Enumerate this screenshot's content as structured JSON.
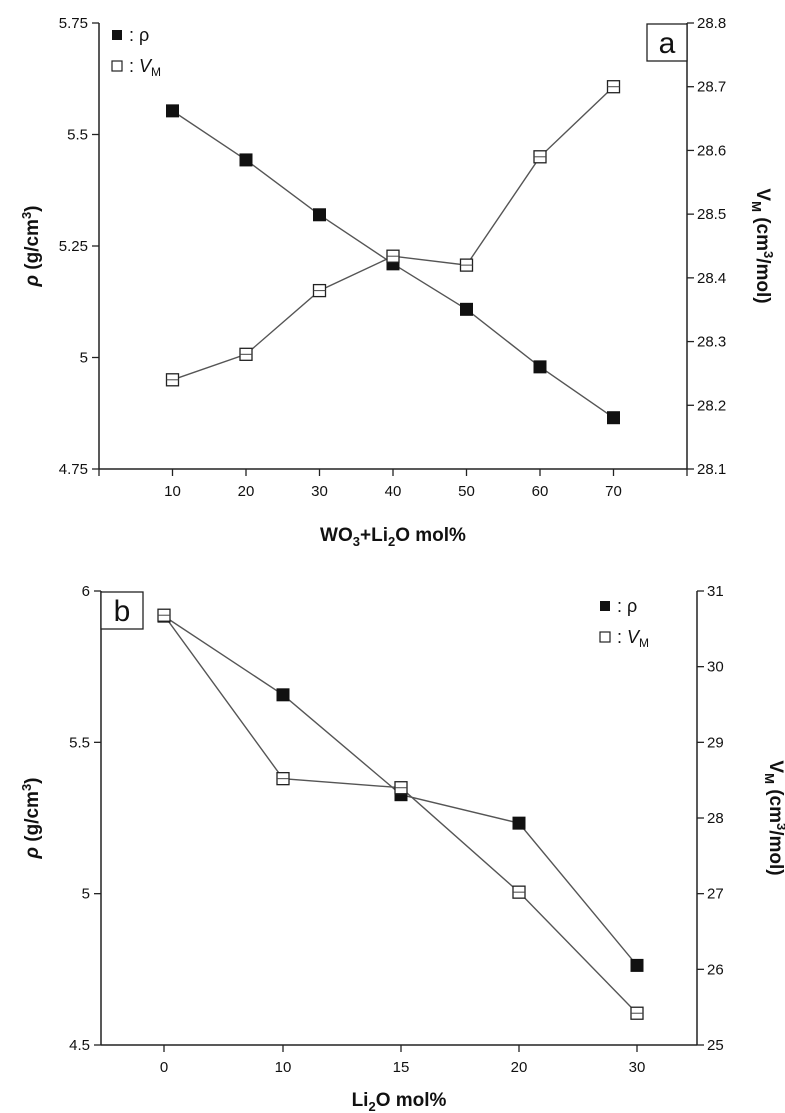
{
  "chart_data": [
    {
      "type": "line",
      "panel_label": "a",
      "x_unit": "mol%",
      "xlabel_parts": [
        "WO",
        "3",
        "+Li",
        "2",
        "O mol%"
      ],
      "ylabel_left_parts": [
        "ρ",
        " (g/cm",
        "3",
        ")"
      ],
      "ylabel_right_parts": [
        "V",
        "M",
        " (cm",
        "3",
        "/mol)"
      ],
      "categories": [
        10,
        20,
        30,
        40,
        50,
        60,
        70
      ],
      "xlim": [
        0,
        80
      ],
      "left_axis": {
        "ticks": [
          "4.75",
          "5",
          "5.25",
          "5.5",
          "5.75"
        ],
        "lim": [
          4.75,
          5.75
        ]
      },
      "right_axis": {
        "ticks": [
          "28.1",
          "28.2",
          "28.3",
          "28.4",
          "28.5",
          "28.6",
          "28.7",
          "28.8"
        ],
        "lim": [
          28.1,
          28.8
        ]
      },
      "legend_position": "top-left",
      "series": [
        {
          "name": "ρ",
          "axis": "left",
          "marker": "filled-square",
          "values": [
            5.553,
            5.443,
            5.32,
            5.21,
            5.108,
            4.979,
            4.865
          ]
        },
        {
          "name": "V",
          "name_sub": "M",
          "axis": "right",
          "marker": "open-square",
          "values": [
            28.24,
            28.28,
            28.38,
            28.434,
            28.42,
            28.59,
            28.7
          ]
        }
      ]
    },
    {
      "type": "line",
      "panel_label": "b",
      "xlabel_parts": [
        "Li",
        "2",
        "O mol%"
      ],
      "ylabel_left_parts": [
        "ρ",
        " (g/cm",
        "3",
        ")"
      ],
      "ylabel_right_parts": [
        "V",
        "M",
        " (cm",
        "3",
        "/mol)"
      ],
      "categories": [
        0,
        10,
        15,
        20,
        30
      ],
      "x_scale": "categorical",
      "left_axis": {
        "ticks": [
          "4.5",
          "5",
          "5.5",
          "6"
        ],
        "lim": [
          4.5,
          6
        ]
      },
      "right_axis": {
        "ticks": [
          "25",
          "26",
          "27",
          "28",
          "29",
          "30",
          "31"
        ],
        "lim": [
          25,
          31
        ]
      },
      "legend_position": "top-right",
      "series": [
        {
          "name": "ρ",
          "axis": "left",
          "marker": "filled-square",
          "values": [
            5.917,
            5.657,
            5.327,
            5.233,
            4.763
          ]
        },
        {
          "name": "V",
          "name_sub": "M",
          "axis": "right",
          "marker": "open-square",
          "values": [
            30.68,
            28.52,
            28.4,
            27.02,
            25.42
          ]
        }
      ]
    }
  ]
}
